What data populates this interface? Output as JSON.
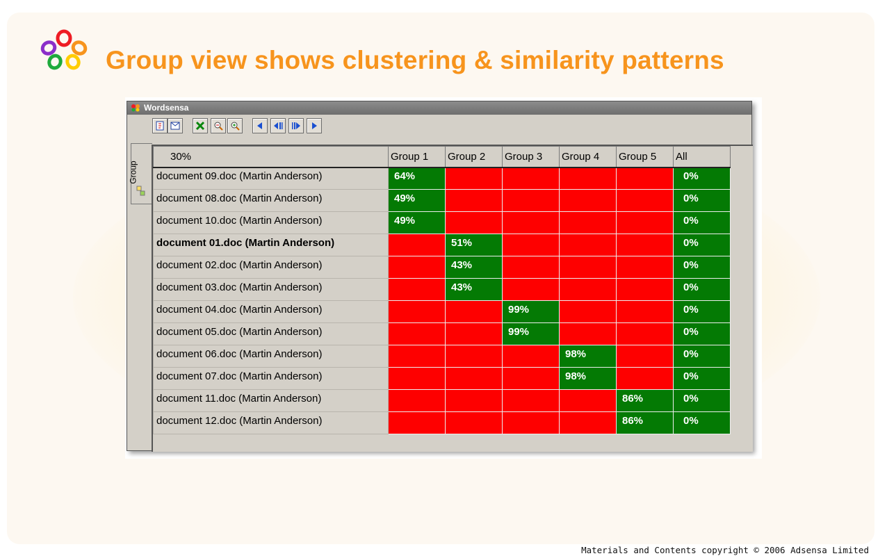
{
  "slide": {
    "title": "Group view shows clustering & similarity patterns",
    "copyright": "Materials  and Contents copyright © 2006 Adsensa Limited",
    "accent_color": "#f7941d"
  },
  "window": {
    "title": "Wordsensa",
    "toolbar": [
      "open-doc-icon",
      "email-icon",
      "delete-icon",
      "zoom-out-icon",
      "zoom-in-icon",
      "arrow-left-icon",
      "step-back-icon",
      "step-forward-icon",
      "arrow-right-icon"
    ],
    "side_tab": "Group"
  },
  "grid": {
    "corner_label": "30%",
    "columns": [
      "Group 1",
      "Group 2",
      "Group 3",
      "Group 4",
      "Group 5",
      "All"
    ],
    "rows": [
      {
        "name": "document 09.doc (Martin Anderson)",
        "bold": false,
        "group": 1,
        "value": "64%",
        "all": "0%"
      },
      {
        "name": "document 08.doc (Martin Anderson)",
        "bold": false,
        "group": 1,
        "value": "49%",
        "all": "0%"
      },
      {
        "name": "document 10.doc (Martin Anderson)",
        "bold": false,
        "group": 1,
        "value": "49%",
        "all": "0%"
      },
      {
        "name": "document 01.doc (Martin Anderson)",
        "bold": true,
        "group": 2,
        "value": "51%",
        "all": "0%"
      },
      {
        "name": "document 02.doc (Martin Anderson)",
        "bold": false,
        "group": 2,
        "value": "43%",
        "all": "0%"
      },
      {
        "name": "document 03.doc (Martin Anderson)",
        "bold": false,
        "group": 2,
        "value": "43%",
        "all": "0%"
      },
      {
        "name": "document 04.doc (Martin Anderson)",
        "bold": false,
        "group": 3,
        "value": "99%",
        "all": "0%"
      },
      {
        "name": "document 05.doc (Martin Anderson)",
        "bold": false,
        "group": 3,
        "value": "99%",
        "all": "0%"
      },
      {
        "name": "document 06.doc (Martin Anderson)",
        "bold": false,
        "group": 4,
        "value": "98%",
        "all": "0%"
      },
      {
        "name": "document 07.doc (Martin Anderson)",
        "bold": false,
        "group": 4,
        "value": "98%",
        "all": "0%"
      },
      {
        "name": "document 11.doc (Martin Anderson)",
        "bold": false,
        "group": 5,
        "value": "86%",
        "all": "0%"
      },
      {
        "name": "document 12.doc (Martin Anderson)",
        "bold": false,
        "group": 5,
        "value": "86%",
        "all": "0%"
      }
    ],
    "colors": {
      "match": "#047a04",
      "nomatch": "#fe0000"
    }
  }
}
